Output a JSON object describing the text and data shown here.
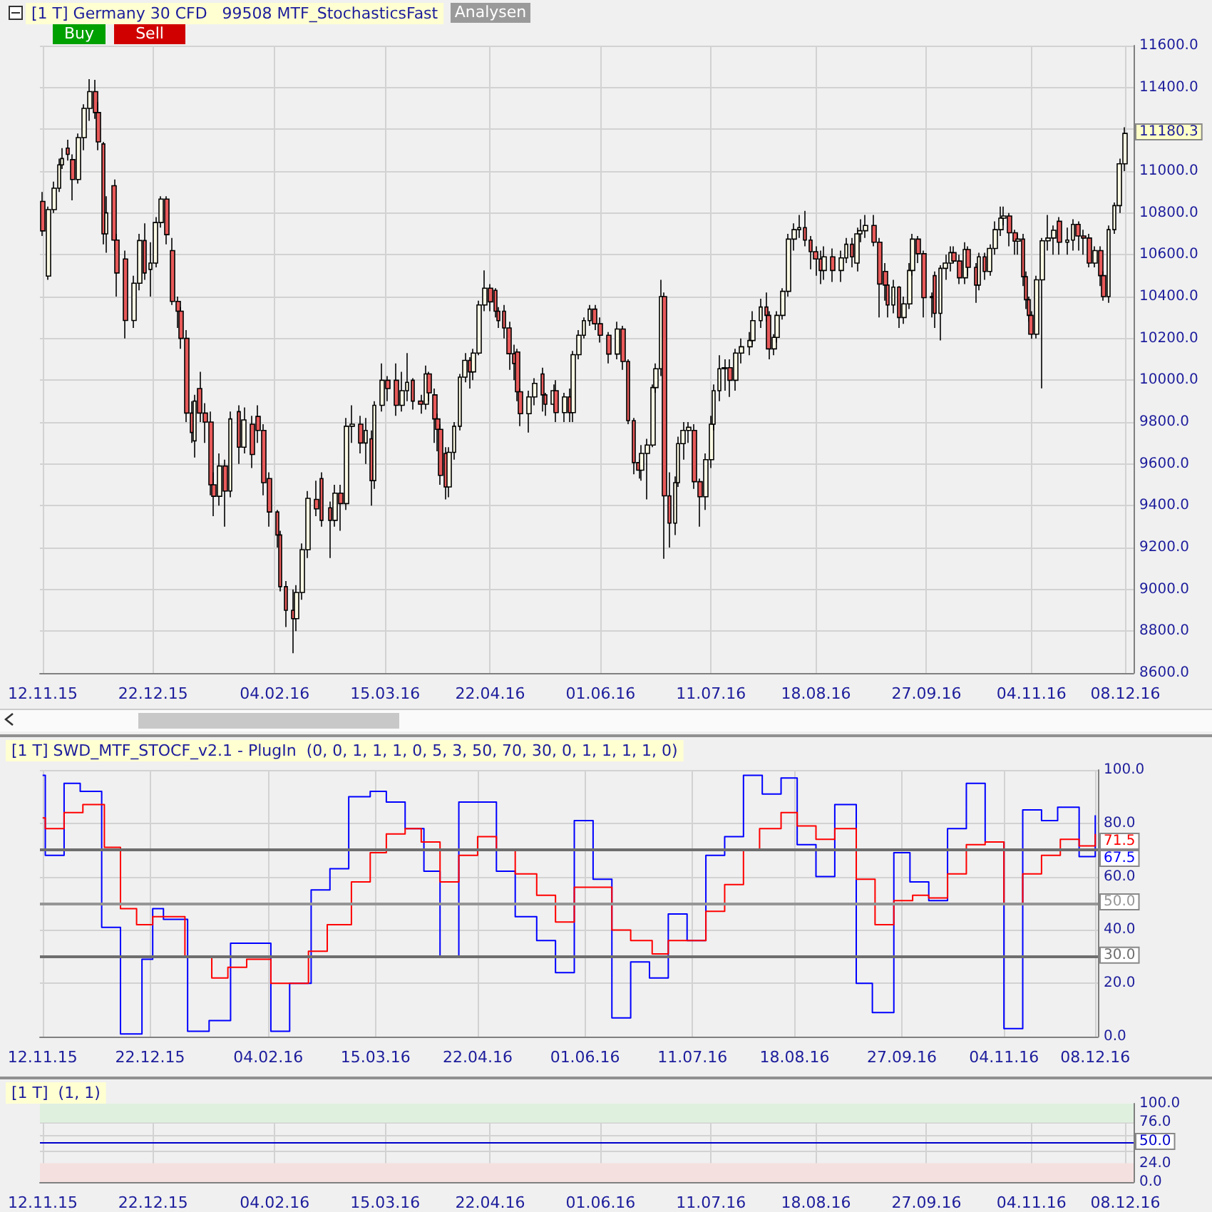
{
  "chart_data": [
    {
      "type": "candlestick",
      "title": "[1 T] Germany 30 CFD   99508 MTF_StochasticsFast",
      "xlim": [
        "2015-11-11",
        "2016-12-11"
      ],
      "xticks": [
        {
          "value": "2015-11-12",
          "label": "12.11.15"
        },
        {
          "value": "2015-12-22",
          "label": "22.12.15"
        },
        {
          "value": "2016-02-04",
          "label": "04.02.16"
        },
        {
          "value": "2016-03-15",
          "label": "15.03.16"
        },
        {
          "value": "2016-04-22",
          "label": "22.04.16"
        },
        {
          "value": "2016-06-01",
          "label": "01.06.16"
        },
        {
          "value": "2016-07-11",
          "label": "11.07.16"
        },
        {
          "value": "2016-08-18",
          "label": "18.08.16"
        },
        {
          "value": "2016-09-27",
          "label": "27.09.16"
        },
        {
          "value": "2016-11-04",
          "label": "04.11.16"
        },
        {
          "value": "2016-12-08",
          "label": "08.12.16"
        }
      ],
      "ylim": [
        8600,
        11600
      ],
      "yticks": [
        {
          "value": 8600,
          "label": "8600.0"
        },
        {
          "value": 8800,
          "label": "8800.0"
        },
        {
          "value": 9000,
          "label": "9000.0"
        },
        {
          "value": 9200,
          "label": "9200.0"
        },
        {
          "value": 9400,
          "label": "9400.0"
        },
        {
          "value": 9600,
          "label": "9600.0"
        },
        {
          "value": 9800,
          "label": "9800.0"
        },
        {
          "value": 10000,
          "label": "10000.0"
        },
        {
          "value": 10200,
          "label": "10200.0"
        },
        {
          "value": 10400,
          "label": "10400.0"
        },
        {
          "value": 10600,
          "label": "10600.0"
        },
        {
          "value": 10800,
          "label": "10800.0"
        },
        {
          "value": 11000,
          "label": "11000.0"
        },
        {
          "value": 11200,
          "label": null
        },
        {
          "value": 11400,
          "label": "11400.0"
        },
        {
          "value": 11600,
          "label": "11600.0"
        }
      ],
      "grid": true,
      "annotations": [
        "Buy",
        "Sell",
        "Analysen"
      ],
      "value_labels": [
        null,
        null,
        null,
        null,
        null,
        null,
        null,
        null,
        null,
        null,
        null,
        null,
        null,
        null,
        null,
        null,
        null,
        null,
        null,
        null,
        null,
        null,
        null,
        null,
        null,
        null,
        null,
        null,
        null,
        null,
        null,
        null,
        null,
        null,
        null,
        null,
        null,
        null,
        null,
        null,
        null,
        null,
        null,
        null,
        null,
        null,
        null,
        null,
        null,
        null,
        null,
        null,
        null,
        null,
        null,
        null,
        null,
        null,
        null,
        null,
        null,
        null,
        null,
        null,
        null,
        null,
        null,
        null,
        null,
        null,
        null,
        null,
        null,
        null,
        null,
        null,
        null,
        null,
        null,
        null,
        null,
        null,
        null,
        null,
        null,
        null,
        null,
        null,
        null,
        null,
        null,
        null,
        null,
        null,
        null,
        null,
        null,
        null,
        null,
        null,
        null,
        null,
        null,
        null,
        null,
        null,
        null,
        null,
        null,
        null,
        null,
        null,
        null,
        null,
        null,
        null,
        null,
        null,
        null,
        null,
        null,
        null,
        null,
        null,
        null,
        null,
        null,
        null,
        null,
        null,
        null,
        null,
        null,
        null,
        null,
        null,
        null,
        null,
        null,
        null,
        null,
        null,
        null,
        null,
        null,
        null,
        null,
        null,
        null,
        null,
        null,
        null,
        null,
        null,
        null,
        null,
        null,
        null,
        null,
        null,
        null,
        null,
        null,
        null,
        null,
        null,
        null,
        null,
        null,
        null,
        null,
        null,
        null,
        null,
        null,
        null,
        null,
        null,
        null,
        null,
        null,
        null,
        null,
        null,
        null,
        null,
        null,
        null,
        null,
        null,
        null,
        null,
        null,
        null,
        null,
        null,
        null,
        null,
        null,
        null,
        null,
        null,
        null,
        null,
        "11180.3"
      ],
      "x": [
        "2015-11-12",
        "2015-11-14",
        "2015-11-16",
        "2015-11-18",
        "2015-11-19",
        "2015-11-21",
        "2015-11-23",
        "2015-11-25",
        "2015-11-27",
        "2015-11-29",
        "2015-12-01",
        "2015-12-02",
        "2015-12-04",
        "2015-12-05",
        "2015-12-08",
        "2015-12-09",
        "2015-12-12",
        "2015-12-15",
        "2015-12-17",
        "2015-12-19",
        "2015-12-21",
        "2015-12-23",
        "2015-12-25",
        "2015-12-27",
        "2015-12-29",
        "2015-12-31",
        "2016-01-01",
        "2016-01-03",
        "2016-01-05",
        "2016-01-06",
        "2016-01-08",
        "2016-01-10",
        "2016-01-12",
        "2016-01-13",
        "2016-01-15",
        "2016-01-17",
        "2016-01-19",
        "2016-01-22",
        "2016-01-24",
        "2016-01-27",
        "2016-01-29",
        "2016-01-31",
        "2016-02-02",
        "2016-02-05",
        "2016-02-06",
        "2016-02-08",
        "2016-02-11",
        "2016-02-12",
        "2016-02-14",
        "2016-02-16",
        "2016-02-19",
        "2016-02-21",
        "2016-02-24",
        "2016-02-26",
        "2016-02-28",
        "2016-03-01",
        "2016-03-03",
        "2016-03-06",
        "2016-03-08",
        "2016-03-10",
        "2016-03-11",
        "2016-03-14",
        "2016-03-16",
        "2016-03-19",
        "2016-03-21",
        "2016-03-23",
        "2016-03-25",
        "2016-03-28",
        "2016-03-30",
        "2016-03-31",
        "2016-04-02",
        "2016-04-03",
        "2016-04-04",
        "2016-04-06",
        "2016-04-07",
        "2016-04-09",
        "2016-04-11",
        "2016-04-13",
        "2016-04-15",
        "2016-04-16",
        "2016-04-18",
        "2016-04-20",
        "2016-04-22",
        "2016-04-24",
        "2016-04-25",
        "2016-04-27",
        "2016-04-29",
        "2016-05-01",
        "2016-05-02",
        "2016-05-03",
        "2016-05-06",
        "2016-05-08",
        "2016-05-11",
        "2016-05-12",
        "2016-05-15",
        "2016-05-16",
        "2016-05-19",
        "2016-05-21",
        "2016-05-22",
        "2016-05-24",
        "2016-05-26",
        "2016-05-28",
        "2016-05-30",
        "2016-06-01",
        "2016-06-04",
        "2016-06-07",
        "2016-06-09",
        "2016-06-11",
        "2016-06-13",
        "2016-06-15",
        "2016-06-16",
        "2016-06-18",
        "2016-06-20",
        "2016-06-21",
        "2016-06-23",
        "2016-06-24",
        "2016-06-26",
        "2016-06-28",
        "2016-06-29",
        "2016-07-01",
        "2016-07-03",
        "2016-07-05",
        "2016-07-07",
        "2016-07-09",
        "2016-07-11",
        "2016-07-12",
        "2016-07-14",
        "2016-07-16",
        "2016-07-18",
        "2016-07-20",
        "2016-07-22",
        "2016-07-25",
        "2016-07-26",
        "2016-07-29",
        "2016-07-31",
        "2016-08-01",
        "2016-08-03",
        "2016-08-04",
        "2016-08-06",
        "2016-08-08",
        "2016-08-10",
        "2016-08-12",
        "2016-08-14",
        "2016-08-16",
        "2016-08-18",
        "2016-08-20",
        "2016-08-21",
        "2016-08-24",
        "2016-08-27",
        "2016-08-29",
        "2016-08-31",
        "2016-09-02",
        "2016-09-03",
        "2016-09-05",
        "2016-09-08",
        "2016-09-10",
        "2016-09-12",
        "2016-09-13",
        "2016-09-15",
        "2016-09-17",
        "2016-09-19",
        "2016-09-21",
        "2016-09-22",
        "2016-09-24",
        "2016-09-26",
        "2016-09-29",
        "2016-09-30",
        "2016-10-02",
        "2016-10-04",
        "2016-10-06",
        "2016-10-07",
        "2016-10-09",
        "2016-10-11",
        "2016-10-12",
        "2016-10-15",
        "2016-10-16",
        "2016-10-18",
        "2016-10-20",
        "2016-10-22",
        "2016-10-24",
        "2016-10-25",
        "2016-10-27",
        "2016-10-29",
        "2016-10-30",
        "2016-11-01",
        "2016-11-02",
        "2016-11-03",
        "2016-11-04",
        "2016-11-06",
        "2016-11-08",
        "2016-11-10",
        "2016-11-12",
        "2016-11-14",
        "2016-11-17",
        "2016-11-19",
        "2016-11-21",
        "2016-11-23",
        "2016-11-25",
        "2016-11-27",
        "2016-11-29",
        "2016-11-30",
        "2016-12-02",
        "2016-12-04",
        "2016-12-06",
        "2016-12-08"
      ],
      "ohlc": [
        [
          10855,
          10900,
          10690,
          10714
        ],
        [
          10498,
          10830,
          10480,
          10816
        ],
        [
          10816,
          10950,
          10800,
          10918
        ],
        [
          10918,
          11060,
          10900,
          11030
        ],
        [
          11030,
          11110,
          11010,
          11060
        ],
        [
          11110,
          11150,
          11050,
          11080
        ],
        [
          11055,
          11080,
          10860,
          10960
        ],
        [
          10960,
          11180,
          10940,
          11160
        ],
        [
          11160,
          11320,
          11100,
          11300
        ],
        [
          11300,
          11440,
          11240,
          11380
        ],
        [
          11380,
          11436,
          11250,
          11280
        ],
        [
          11280,
          11330,
          11100,
          11140
        ],
        [
          11130,
          11140,
          10650,
          10700
        ],
        [
          10700,
          10880,
          10610,
          10800
        ],
        [
          10930,
          10960,
          10620,
          10670
        ],
        [
          10670,
          10700,
          10400,
          10513
        ],
        [
          10580,
          10620,
          10200,
          10286
        ],
        [
          10286,
          10500,
          10250,
          10464
        ],
        [
          10464,
          10700,
          10430,
          10668
        ],
        [
          10668,
          10750,
          10480,
          10513
        ],
        [
          10530,
          10660,
          10400,
          10560
        ],
        [
          10560,
          10780,
          10540,
          10754
        ],
        [
          10754,
          10880,
          10730,
          10866
        ],
        [
          10866,
          10880,
          10650,
          10696
        ],
        [
          10620,
          10680,
          10360,
          10377
        ],
        [
          10377,
          10400,
          10250,
          10330
        ],
        [
          10330,
          10350,
          10150,
          10200
        ],
        [
          10200,
          10240,
          9800,
          9843
        ],
        [
          9843,
          9900,
          9700,
          9750
        ],
        [
          9710,
          9930,
          9630,
          9900
        ],
        [
          9960,
          10040,
          9800,
          9843
        ],
        [
          9843,
          9890,
          9700,
          9800
        ],
        [
          9800,
          9850,
          9450,
          9500
        ],
        [
          9500,
          9560,
          9350,
          9445
        ],
        [
          9445,
          9650,
          9400,
          9590
        ],
        [
          9590,
          9620,
          9300,
          9470
        ],
        [
          9470,
          9850,
          9440,
          9815
        ],
        [
          9850,
          9880,
          9600,
          9680
        ],
        [
          9680,
          9870,
          9650,
          9810
        ],
        [
          9790,
          9830,
          9580,
          9645
        ],
        [
          9827,
          9880,
          9700,
          9760
        ],
        [
          9760,
          9790,
          9450,
          9510
        ],
        [
          9530,
          9560,
          9300,
          9370
        ],
        [
          9370,
          9380,
          9200,
          9260
        ],
        [
          9260,
          9280,
          8990,
          9013
        ],
        [
          9013,
          9040,
          8820,
          8900
        ],
        [
          8900,
          9000,
          8695,
          8860
        ],
        [
          8860,
          9020,
          8800,
          8985
        ],
        [
          8985,
          9220,
          8950,
          9190
        ],
        [
          9190,
          9470,
          9150,
          9435
        ],
        [
          9430,
          9520,
          9350,
          9385
        ],
        [
          9530,
          9560,
          9300,
          9330
        ],
        [
          9390,
          9420,
          9150,
          9330
        ],
        [
          9330,
          9500,
          9300,
          9460
        ],
        [
          9460,
          9500,
          9280,
          9410
        ],
        [
          9410,
          9820,
          9380,
          9780
        ],
        [
          9780,
          9880,
          9700,
          9790
        ],
        [
          9790,
          9830,
          9650,
          9700
        ],
        [
          9700,
          9820,
          9600,
          9760
        ],
        [
          9720,
          9760,
          9400,
          9520
        ],
        [
          9520,
          9900,
          9480,
          9880
        ],
        [
          9880,
          10080,
          9850,
          10000
        ],
        [
          10000,
          10020,
          9900,
          9960
        ],
        [
          10000,
          10080,
          9830,
          9880
        ],
        [
          9880,
          10040,
          9850,
          9950
        ],
        [
          9950,
          10130,
          9900,
          9990
        ],
        [
          10000,
          10010,
          9860,
          9900
        ],
        [
          9900,
          9930,
          9840,
          9885
        ],
        [
          9885,
          10070,
          9860,
          10030
        ],
        [
          10030,
          10040,
          9900,
          9940
        ],
        [
          9930,
          9960,
          9700,
          9815
        ],
        [
          9815,
          9840,
          9660,
          9765
        ],
        [
          9765,
          9790,
          9500,
          9545
        ],
        [
          9650,
          9680,
          9430,
          9490
        ],
        [
          9490,
          9680,
          9440,
          9655
        ],
        [
          9655,
          9800,
          9620,
          9780
        ],
        [
          9780,
          10030,
          9760,
          10015
        ],
        [
          10015,
          10130,
          9990,
          10095
        ],
        [
          10095,
          10110,
          9960,
          10040
        ],
        [
          10040,
          10150,
          10000,
          10130
        ],
        [
          10130,
          10380,
          10120,
          10360
        ],
        [
          10360,
          10525,
          10330,
          10440
        ],
        [
          10440,
          10460,
          10330,
          10375
        ],
        [
          10430,
          10440,
          10300,
          10330
        ],
        [
          10330,
          10350,
          10250,
          10285
        ],
        [
          10330,
          10360,
          10200,
          10250
        ],
        [
          10250,
          10280,
          10050,
          10127
        ],
        [
          10127,
          10170,
          10000,
          10080
        ],
        [
          10135,
          10150,
          9900,
          9945
        ],
        [
          9945,
          9960,
          9780,
          9840
        ],
        [
          9840,
          9950,
          9750,
          9920
        ],
        [
          9920,
          10010,
          9880,
          9985
        ],
        [
          10030,
          10060,
          9850,
          9930
        ],
        [
          9930,
          9940,
          9830,
          9885
        ],
        [
          9885,
          9980,
          9850,
          9950
        ],
        [
          9950,
          10000,
          9800,
          9845
        ],
        [
          9845,
          9940,
          9800,
          9920
        ],
        [
          9920,
          9960,
          9800,
          9845
        ],
        [
          9845,
          10140,
          9800,
          10122
        ],
        [
          10122,
          10240,
          10100,
          10215
        ],
        [
          10215,
          10300,
          10200,
          10285
        ],
        [
          10285,
          10360,
          10260,
          10340
        ],
        [
          10340,
          10360,
          10240,
          10270
        ],
        [
          10270,
          10300,
          10180,
          10215
        ],
        [
          10215,
          10230,
          10080,
          10125
        ],
        [
          10125,
          10280,
          10100,
          10245
        ],
        [
          10245,
          10260,
          10050,
          10090
        ],
        [
          10090,
          10100,
          9790,
          9807
        ],
        [
          9807,
          9820,
          9550,
          9606
        ],
        [
          9606,
          9620,
          9530,
          9570
        ],
        [
          9570,
          9690,
          9520,
          9650
        ],
        [
          9650,
          9720,
          9430,
          9690
        ],
        [
          9690,
          9980,
          9680,
          9965
        ],
        [
          9965,
          10080,
          9940,
          10055
        ],
        [
          10055,
          10480,
          10020,
          10400
        ],
        [
          10400,
          10420,
          9146,
          9447
        ],
        [
          9447,
          9560,
          9200,
          9317
        ],
        [
          9317,
          9540,
          9260,
          9510
        ],
        [
          9510,
          9730,
          9490,
          9697
        ],
        [
          9697,
          9800,
          9620,
          9760
        ],
        [
          9760,
          9800,
          9700,
          9775
        ],
        [
          9760,
          9790,
          9480,
          9515
        ],
        [
          9515,
          9530,
          9300,
          9443
        ],
        [
          9443,
          9650,
          9380,
          9620
        ],
        [
          9620,
          9830,
          9580,
          9790
        ],
        [
          9790,
          9980,
          9760,
          9950
        ],
        [
          9950,
          10120,
          9900,
          10055
        ],
        [
          10055,
          10100,
          9950,
          10060
        ],
        [
          10060,
          10100,
          9920,
          10000
        ],
        [
          10000,
          10150,
          9950,
          10130
        ],
        [
          10130,
          10200,
          10080,
          10160
        ],
        [
          10160,
          10230,
          10120,
          10190
        ],
        [
          10190,
          10330,
          10170,
          10285
        ],
        [
          10285,
          10390,
          10250,
          10350
        ],
        [
          10350,
          10420,
          10280,
          10310
        ],
        [
          10310,
          10330,
          10100,
          10150
        ],
        [
          10150,
          10220,
          10120,
          10205
        ],
        [
          10205,
          10330,
          10180,
          10310
        ],
        [
          10310,
          10440,
          10290,
          10425
        ],
        [
          10425,
          10700,
          10400,
          10675
        ],
        [
          10675,
          10750,
          10620,
          10720
        ],
        [
          10720,
          10790,
          10680,
          10730
        ],
        [
          10730,
          10810,
          10640,
          10670
        ],
        [
          10670,
          10690,
          10530,
          10615
        ],
        [
          10615,
          10640,
          10500,
          10580
        ],
        [
          10580,
          10620,
          10460,
          10525
        ],
        [
          10525,
          10640,
          10480,
          10590
        ],
        [
          10590,
          10630,
          10470,
          10525
        ],
        [
          10525,
          10620,
          10470,
          10585
        ],
        [
          10585,
          10680,
          10560,
          10650
        ],
        [
          10650,
          10680,
          10540,
          10590
        ],
        [
          10560,
          10730,
          10520,
          10700
        ],
        [
          10700,
          10770,
          10660,
          10715
        ],
        [
          10715,
          10790,
          10680,
          10740
        ],
        [
          10740,
          10790,
          10640,
          10660
        ],
        [
          10660,
          10680,
          10300,
          10460
        ],
        [
          10520,
          10560,
          10380,
          10455
        ],
        [
          10455,
          10460,
          10300,
          10360
        ],
        [
          10360,
          10480,
          10320,
          10445
        ],
        [
          10445,
          10450,
          10250,
          10300
        ],
        [
          10300,
          10400,
          10270,
          10365
        ],
        [
          10365,
          10560,
          10340,
          10525
        ],
        [
          10525,
          10700,
          10500,
          10675
        ],
        [
          10675,
          10690,
          10560,
          10605
        ],
        [
          10605,
          10620,
          10300,
          10395
        ],
        [
          10395,
          10420,
          10300,
          10400
        ],
        [
          10500,
          10520,
          10250,
          10320
        ],
        [
          10320,
          10550,
          10190,
          10535
        ],
        [
          10535,
          10600,
          10480,
          10560
        ],
        [
          10560,
          10640,
          10520,
          10610
        ],
        [
          10610,
          10640,
          10560,
          10570
        ],
        [
          10570,
          10600,
          10460,
          10490
        ],
        [
          10490,
          10660,
          10460,
          10625
        ],
        [
          10625,
          10640,
          10500,
          10540
        ],
        [
          10540,
          10560,
          10370,
          10455
        ],
        [
          10455,
          10610,
          10430,
          10590
        ],
        [
          10590,
          10610,
          10480,
          10520
        ],
        [
          10520,
          10650,
          10500,
          10630
        ],
        [
          10630,
          10760,
          10600,
          10720
        ],
        [
          10720,
          10830,
          10690,
          10775
        ],
        [
          10775,
          10830,
          10740,
          10785
        ],
        [
          10785,
          10800,
          10640,
          10705
        ],
        [
          10705,
          10720,
          10600,
          10665
        ],
        [
          10665,
          10700,
          10600,
          10675
        ],
        [
          10675,
          10700,
          10450,
          10495
        ],
        [
          10495,
          10520,
          10340,
          10385
        ],
        [
          10385,
          10400,
          10280,
          10310
        ],
        [
          10310,
          10330,
          10198,
          10220
        ],
        [
          10220,
          10500,
          10200,
          10480
        ],
        [
          10480,
          10680,
          9961,
          10667
        ],
        [
          10667,
          10790,
          10620,
          10680
        ],
        [
          10680,
          10740,
          10600,
          10717
        ],
        [
          10760,
          10780,
          10600,
          10660
        ],
        [
          10660,
          10730,
          10600,
          10670
        ],
        [
          10670,
          10770,
          10620,
          10745
        ],
        [
          10745,
          10760,
          10620,
          10690
        ],
        [
          10690,
          10720,
          10600,
          10680
        ],
        [
          10680,
          10700,
          10540,
          10560
        ],
        [
          10560,
          10640,
          10540,
          10620
        ],
        [
          10620,
          10640,
          10450,
          10500
        ],
        [
          10500,
          10520,
          10380,
          10400
        ],
        [
          10400,
          10740,
          10370,
          10720
        ],
        [
          10720,
          10850,
          10700,
          10835
        ],
        [
          10835,
          11060,
          10800,
          11035
        ],
        [
          11035,
          11210,
          11000,
          11180.3
        ]
      ]
    },
    {
      "type": "step",
      "title": "[1 T] SWD_MTF_STOCF_v2.1 - PlugIn  (0, 0, 1, 1, 1, 0, 5, 3, 50, 70, 30, 0, 1, 1, 1, 1, 0)",
      "xlim": [
        "2015-11-11",
        "2016-12-09"
      ],
      "xticks": [
        {
          "value": "2015-11-12",
          "label": "12.11.15"
        },
        {
          "value": "2015-12-22",
          "label": "22.12.15"
        },
        {
          "value": "2016-02-04",
          "label": "04.02.16"
        },
        {
          "value": "2016-03-15",
          "label": "15.03.16"
        },
        {
          "value": "2016-04-22",
          "label": "22.04.16"
        },
        {
          "value": "2016-06-01",
          "label": "01.06.16"
        },
        {
          "value": "2016-07-11",
          "label": "11.07.16"
        },
        {
          "value": "2016-08-18",
          "label": "18.08.16"
        },
        {
          "value": "2016-09-27",
          "label": "27.09.16"
        },
        {
          "value": "2016-11-04",
          "label": "04.11.16"
        },
        {
          "value": "2016-12-08",
          "label": "08.12.16"
        }
      ],
      "ylim": [
        0,
        100
      ],
      "yticks": [
        {
          "value": 0,
          "label": "0.0"
        },
        {
          "value": 20,
          "label": "20.0"
        },
        {
          "value": 40,
          "label": "40.0"
        },
        {
          "value": 60,
          "label": "60.0"
        },
        {
          "value": 80,
          "label": "80.0"
        },
        {
          "value": 100,
          "label": "100.0"
        }
      ],
      "grid": true,
      "marker": "none",
      "ref_lines": [
        {
          "axis": "y",
          "value": 70,
          "color": "#6e6e6e"
        },
        {
          "axis": "y",
          "value": 50,
          "label": "50.0",
          "color": "#969696"
        },
        {
          "axis": "y",
          "value": 30,
          "label": "30.0",
          "color": "#6e6e6e"
        }
      ],
      "series": [
        {
          "color": "#0000ff",
          "x": [
            "2015-11-12",
            "2015-11-13",
            "2015-11-20",
            "2015-11-26",
            "2015-12-04",
            "2015-12-11",
            "2015-12-19",
            "2015-12-23",
            "2015-12-27",
            "2016-01-05",
            "2016-01-13",
            "2016-01-21",
            "2016-02-05",
            "2016-02-12",
            "2016-02-20",
            "2016-02-27",
            "2016-03-05",
            "2016-03-13",
            "2016-03-19",
            "2016-03-26",
            "2016-04-02",
            "2016-04-08",
            "2016-04-15",
            "2016-04-29",
            "2016-05-06",
            "2016-05-14",
            "2016-05-21",
            "2016-05-28",
            "2016-06-04",
            "2016-06-11",
            "2016-06-18",
            "2016-06-25",
            "2016-07-02",
            "2016-07-09",
            "2016-07-16",
            "2016-07-23",
            "2016-07-30",
            "2016-08-06",
            "2016-08-13",
            "2016-08-19",
            "2016-08-26",
            "2016-09-02",
            "2016-09-10",
            "2016-09-16",
            "2016-09-24",
            "2016-09-30",
            "2016-10-07",
            "2016-10-14",
            "2016-10-21",
            "2016-10-28",
            "2016-11-04",
            "2016-11-11",
            "2016-11-18",
            "2016-11-24",
            "2016-12-02",
            "2016-12-07",
            "2016-12-08"
          ],
          "values": [
            98,
            68,
            95,
            92,
            41,
            1,
            29,
            48,
            44,
            2,
            6,
            35,
            2,
            20,
            55,
            63,
            90,
            92,
            88,
            78,
            62,
            30,
            88,
            62,
            45,
            36,
            24,
            81,
            59,
            7,
            28,
            22,
            46,
            36,
            68,
            75,
            98,
            91,
            97,
            72,
            60,
            87,
            20,
            9,
            69,
            58,
            51,
            78,
            95,
            73,
            3,
            85,
            81,
            86,
            67.5,
            67.5,
            83
          ],
          "value_labels": [
            null,
            null,
            null,
            null,
            null,
            null,
            null,
            null,
            null,
            null,
            null,
            null,
            null,
            null,
            null,
            null,
            null,
            null,
            null,
            null,
            null,
            null,
            null,
            null,
            null,
            null,
            null,
            null,
            null,
            null,
            null,
            null,
            null,
            null,
            null,
            null,
            null,
            null,
            null,
            null,
            null,
            null,
            null,
            null,
            null,
            null,
            null,
            null,
            null,
            null,
            null,
            null,
            null,
            null,
            null,
            "67.5",
            null
          ]
        },
        {
          "color": "#ff0000",
          "x": [
            "2015-11-12",
            "2015-11-13",
            "2015-11-20",
            "2015-11-27",
            "2015-12-05",
            "2015-12-11",
            "2015-12-17",
            "2015-12-23",
            "2016-01-04",
            "2016-01-14",
            "2016-01-20",
            "2016-01-27",
            "2016-02-05",
            "2016-02-19",
            "2016-02-26",
            "2016-03-06",
            "2016-03-13",
            "2016-03-19",
            "2016-03-26",
            "2016-04-01",
            "2016-04-08",
            "2016-04-15",
            "2016-04-22",
            "2016-04-29",
            "2016-05-06",
            "2016-05-14",
            "2016-05-21",
            "2016-05-28",
            "2016-06-11",
            "2016-06-18",
            "2016-06-26",
            "2016-07-02",
            "2016-07-16",
            "2016-07-23",
            "2016-07-30",
            "2016-08-05",
            "2016-08-13",
            "2016-08-19",
            "2016-08-26",
            "2016-09-02",
            "2016-09-10",
            "2016-09-17",
            "2016-09-24",
            "2016-10-01",
            "2016-10-07",
            "2016-10-14",
            "2016-10-21",
            "2016-10-28",
            "2016-11-04",
            "2016-11-11",
            "2016-11-18",
            "2016-11-25",
            "2016-12-02",
            "2016-12-07",
            "2016-12-08"
          ],
          "values": [
            82,
            78,
            84,
            87,
            71,
            48,
            42,
            45,
            30,
            22,
            26,
            29,
            20,
            32,
            42,
            58,
            69,
            76,
            78,
            73,
            58,
            68,
            75,
            70,
            61,
            53,
            43,
            56,
            40,
            36,
            31,
            36,
            47,
            57,
            70,
            78,
            84,
            79,
            74,
            78,
            59,
            42,
            51,
            53,
            52,
            61,
            72,
            73,
            50,
            61,
            68,
            74,
            71.5,
            71.5,
            76
          ],
          "value_labels": [
            null,
            null,
            null,
            null,
            null,
            null,
            null,
            null,
            null,
            null,
            null,
            null,
            null,
            null,
            null,
            null,
            null,
            null,
            null,
            null,
            null,
            null,
            null,
            null,
            null,
            null,
            null,
            null,
            null,
            null,
            null,
            null,
            null,
            null,
            null,
            null,
            null,
            null,
            null,
            null,
            null,
            null,
            null,
            null,
            null,
            null,
            null,
            null,
            null,
            null,
            null,
            null,
            null,
            "71.5",
            null
          ]
        }
      ]
    },
    {
      "type": "line",
      "title": "[1 T]  (1, 1)",
      "xlim": [
        "2015-11-11",
        "2016-12-11"
      ],
      "xticks": [
        {
          "value": "2015-11-12",
          "label": "12.11.15"
        },
        {
          "value": "2015-12-22",
          "label": "22.12.15"
        },
        {
          "value": "2016-02-04",
          "label": "04.02.16"
        },
        {
          "value": "2016-03-15",
          "label": "15.03.16"
        },
        {
          "value": "2016-04-22",
          "label": "22.04.16"
        },
        {
          "value": "2016-06-01",
          "label": "01.06.16"
        },
        {
          "value": "2016-07-11",
          "label": "11.07.16"
        },
        {
          "value": "2016-08-18",
          "label": "18.08.16"
        },
        {
          "value": "2016-09-27",
          "label": "27.09.16"
        },
        {
          "value": "2016-11-04",
          "label": "04.11.16"
        },
        {
          "value": "2016-12-08",
          "label": "08.12.16"
        }
      ],
      "ylim": [
        0,
        100
      ],
      "yticks": [
        {
          "value": 0,
          "label": "0.0"
        },
        {
          "value": 24,
          "label": "24.0"
        },
        {
          "value": 40,
          "label": null
        },
        {
          "value": 60,
          "label": null
        },
        {
          "value": 76,
          "label": "76.0"
        },
        {
          "value": 100,
          "label": "100.0"
        }
      ],
      "grid": true,
      "marker": "none",
      "bands": [
        {
          "axis": "y",
          "from": 76,
          "to": 100,
          "color": "#dff0df"
        },
        {
          "axis": "y",
          "from": 0,
          "to": 24,
          "color": "#f5e0e0"
        }
      ],
      "series": [
        {
          "color": "#0000cc",
          "x": [
            "2015-11-11",
            "2016-12-11"
          ],
          "values": [
            50,
            50
          ],
          "value_labels": [
            null,
            "50.0"
          ]
        }
      ]
    }
  ]
}
